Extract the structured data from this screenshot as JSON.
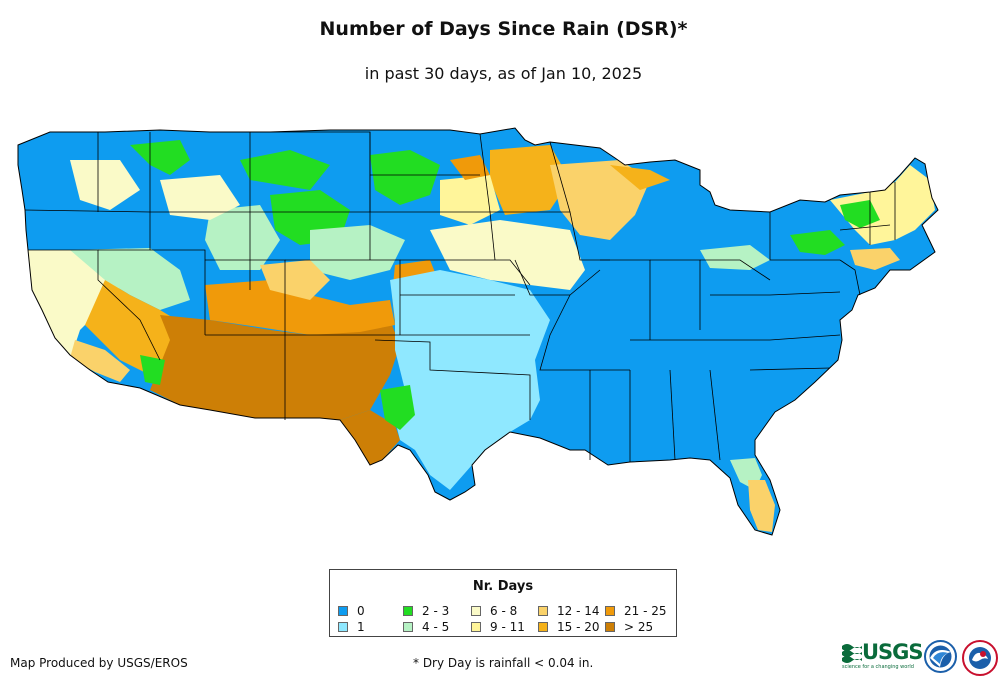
{
  "header": {
    "title": "Number of Days Since Rain (DSR)*",
    "subtitle": "in past 30 days, as of Jan 10, 2025"
  },
  "legend": {
    "title": "Nr. Days",
    "items": [
      {
        "label": "0",
        "color": "#0e9cf0"
      },
      {
        "label": "1",
        "color": "#8fe8ff"
      },
      {
        "label": "2 - 3",
        "color": "#22dd22"
      },
      {
        "label": "4 - 5",
        "color": "#b6f2c4"
      },
      {
        "label": "6 - 8",
        "color": "#fafac8"
      },
      {
        "label": "9 - 11",
        "color": "#fff59a"
      },
      {
        "label": "12 - 14",
        "color": "#fad26a"
      },
      {
        "label": "15 - 20",
        "color": "#f5b21a"
      },
      {
        "label": "21 - 25",
        "color": "#f09a0a"
      },
      {
        "label": "> 25",
        "color": "#cd7f06"
      }
    ]
  },
  "footer": {
    "producer": "Map Produced by USGS/EROS",
    "note": "* Dry Day is rainfall < 0.04 in."
  },
  "logos": {
    "usgs_text": "USGS",
    "usgs_tagline": "science for a changing world",
    "noaa_text": "NOAA"
  }
}
